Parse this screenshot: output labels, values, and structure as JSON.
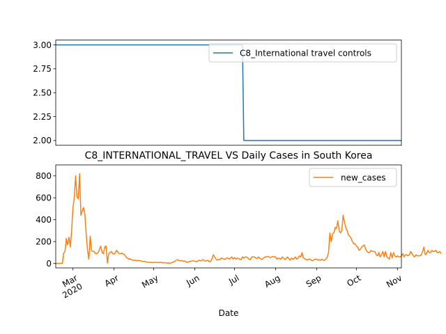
{
  "chart_data": [
    {
      "type": "line",
      "title": "",
      "xlabel": "",
      "ylabel": "",
      "ylim": [
        1.95,
        3.05
      ],
      "yticks": [
        2.0,
        2.25,
        2.5,
        2.75,
        3.0
      ],
      "ytick_labels": [
        "2.00",
        "2.25",
        "2.50",
        "2.75",
        "3.00"
      ],
      "legend_position": "top-right",
      "grid": false,
      "series": [
        {
          "name": "C8_International travel controls",
          "color": "#1f77b4",
          "points": [
            {
              "x": "2020-02-17",
              "y": 3
            },
            {
              "x": "2020-07-07",
              "y": 3
            },
            {
              "x": "2020-07-08",
              "y": 2
            },
            {
              "x": "2020-11-04",
              "y": 2
            }
          ]
        }
      ]
    },
    {
      "type": "line",
      "title": "C8_INTERNATIONAL_TRAVEL VS Daily Cases in South Korea",
      "xlabel": "Date",
      "ylabel": "",
      "ylim": [
        -40,
        900
      ],
      "yticks": [
        0,
        200,
        400,
        600,
        800
      ],
      "ytick_labels": [
        "0",
        "200",
        "400",
        "600",
        "800"
      ],
      "legend_position": "top-right",
      "grid": false,
      "xaxis": {
        "start": "2020-02-17",
        "end": "2020-11-04",
        "ticks": [
          {
            "date": "2020-03-01",
            "label": "Mar",
            "sublabel": "2020"
          },
          {
            "date": "2020-04-01",
            "label": "Apr",
            "sublabel": ""
          },
          {
            "date": "2020-05-01",
            "label": "May",
            "sublabel": ""
          },
          {
            "date": "2020-06-01",
            "label": "Jun",
            "sublabel": ""
          },
          {
            "date": "2020-07-01",
            "label": "Jul",
            "sublabel": ""
          },
          {
            "date": "2020-08-01",
            "label": "Aug",
            "sublabel": ""
          },
          {
            "date": "2020-09-01",
            "label": "Sep",
            "sublabel": ""
          },
          {
            "date": "2020-10-01",
            "label": "Oct",
            "sublabel": ""
          },
          {
            "date": "2020-11-01",
            "label": "Nov",
            "sublabel": ""
          }
        ]
      },
      "series": [
        {
          "name": "new_cases",
          "color": "#ff7f0e",
          "start_date": "2020-02-17",
          "values": [
            1,
            1,
            1,
            1,
            2,
            3,
            96,
            110,
            230,
            170,
            240,
            150,
            300,
            510,
            600,
            800,
            610,
            590,
            820,
            440,
            480,
            510,
            450,
            260,
            120,
            40,
            250,
            120,
            110,
            110,
            90,
            90,
            100,
            130,
            160,
            100,
            90,
            150,
            160,
            5,
            90,
            100,
            110,
            90,
            85,
            100,
            120,
            100,
            90,
            90,
            95,
            85,
            80,
            60,
            50,
            40,
            45,
            35,
            30,
            30,
            30,
            25,
            28,
            27,
            25,
            20,
            18,
            20,
            15,
            12,
            12,
            10,
            10,
            8,
            10,
            10,
            10,
            8,
            9,
            10,
            10,
            5,
            8,
            6,
            4,
            5,
            3,
            5,
            10,
            15,
            20,
            30,
            35,
            27,
            25,
            28,
            20,
            25,
            20,
            10,
            15,
            18,
            20,
            25,
            25,
            20,
            17,
            20,
            30,
            27,
            25,
            35,
            30,
            22,
            25,
            30,
            15,
            20,
            45,
            80,
            60,
            40,
            30,
            40,
            35,
            50,
            45,
            40,
            40,
            50,
            50,
            40,
            50,
            60,
            40,
            55,
            40,
            50,
            45,
            40,
            35,
            60,
            50,
            60,
            60,
            50,
            40,
            35,
            60,
            60,
            60,
            50,
            45,
            60,
            50,
            40,
            40,
            50,
            60,
            60,
            65,
            60,
            55,
            60,
            65,
            60,
            60,
            40,
            50,
            45,
            40,
            60,
            50,
            35,
            45,
            60,
            45,
            30,
            50,
            40,
            45,
            60,
            40,
            50,
            70,
            60,
            100,
            50,
            45,
            35,
            30,
            40,
            40,
            30,
            25,
            35,
            40,
            40,
            30,
            35,
            30,
            40,
            30,
            30,
            40,
            60,
            100,
            280,
            200,
            270,
            280,
            330,
            320,
            390,
            300,
            280,
            300,
            440,
            380,
            330,
            300,
            260,
            250,
            230,
            200,
            180,
            180,
            160,
            150,
            120,
            130,
            150,
            160,
            170,
            130,
            110,
            100,
            100,
            120,
            110,
            110,
            110,
            80,
            70,
            100,
            60,
            80,
            110,
            60,
            110,
            60,
            50,
            40,
            100,
            50,
            100,
            70,
            60,
            70,
            60,
            60,
            70,
            90,
            60,
            80,
            80,
            70,
            80,
            110,
            90,
            70,
            60,
            80,
            70,
            70,
            70,
            80,
            110,
            150,
            80,
            90,
            120,
            100,
            100,
            120,
            110,
            110,
            120,
            100,
            100,
            110,
            90
          ]
        }
      ]
    }
  ]
}
